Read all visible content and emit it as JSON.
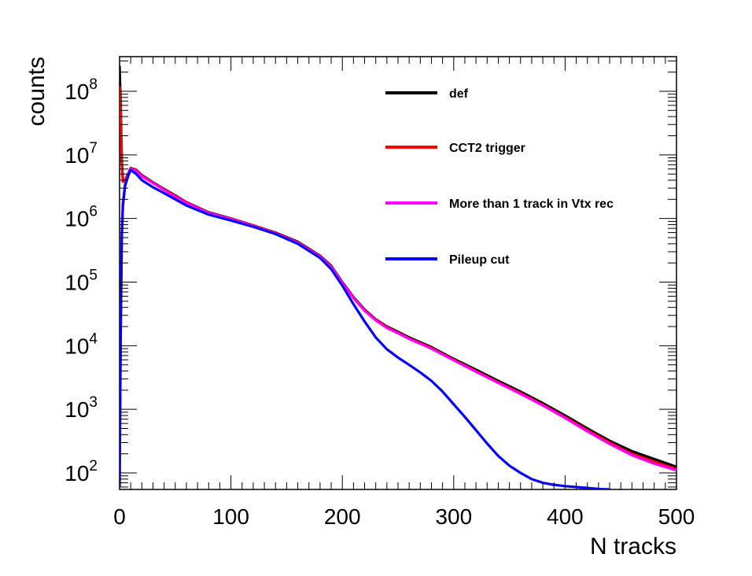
{
  "chart_data": {
    "type": "line",
    "title": "",
    "xlabel": "N tracks",
    "ylabel": "counts",
    "xlim": [
      0,
      500
    ],
    "ylim": [
      55,
      350000000
    ],
    "yscale": "log",
    "grid": false,
    "legend_position": "top-right",
    "x_ticks": [
      0,
      100,
      200,
      300,
      400,
      500
    ],
    "x_tick_labels": [
      "0",
      "100",
      "200",
      "300",
      "400",
      "500"
    ],
    "y_ticks": [
      100,
      1000,
      10000,
      100000,
      1000000,
      10000000,
      100000000
    ],
    "y_tick_labels": [
      {
        "base": "10",
        "exp": "2"
      },
      {
        "base": "10",
        "exp": "3"
      },
      {
        "base": "10",
        "exp": "4"
      },
      {
        "base": "10",
        "exp": "5"
      },
      {
        "base": "10",
        "exp": "6"
      },
      {
        "base": "10",
        "exp": "7"
      },
      {
        "base": "10",
        "exp": "8"
      }
    ],
    "series": [
      {
        "name": "def",
        "color": "#000000",
        "x": [
          0,
          1,
          2,
          3,
          5,
          8,
          10,
          15,
          20,
          30,
          40,
          50,
          60,
          80,
          100,
          120,
          140,
          160,
          180,
          190,
          200,
          210,
          220,
          230,
          240,
          250,
          260,
          280,
          300,
          320,
          340,
          360,
          380,
          400,
          420,
          440,
          460,
          480,
          500
        ],
        "y": [
          250000000,
          60000000,
          8000000,
          4000000,
          4000000,
          5200000,
          6200000,
          5800000,
          4800000,
          3700000,
          2900000,
          2300000,
          1800000,
          1250000,
          1000000,
          780000,
          600000,
          430000,
          260000,
          180000,
          100000,
          58000,
          37000,
          26000,
          20000,
          16500,
          13500,
          9500,
          6200,
          4200,
          2800,
          1900,
          1250,
          800,
          500,
          320,
          220,
          165,
          125
        ]
      },
      {
        "name": "CCT2 trigger",
        "color": "#ff0000",
        "x": [
          0,
          1,
          2,
          3,
          5,
          8,
          10,
          15,
          20,
          30,
          40,
          50,
          60,
          80,
          100,
          120,
          140,
          160,
          180,
          190,
          200,
          210,
          220,
          230,
          240,
          250,
          260,
          280,
          300,
          320,
          340,
          360,
          380,
          400,
          420,
          440,
          460,
          480,
          500
        ],
        "y": [
          120000000,
          40000000,
          7000000,
          3800000,
          3900000,
          5100000,
          6100000,
          5700000,
          4700000,
          3650000,
          2850000,
          2250000,
          1780000,
          1230000,
          990000,
          770000,
          590000,
          420000,
          255000,
          175000,
          98000,
          57000,
          36000,
          25500,
          19500,
          16000,
          13000,
          9200,
          6000,
          4000,
          2650,
          1800,
          1180,
          750,
          470,
          300,
          200,
          150,
          115
        ]
      },
      {
        "name": "More than 1 track in Vtx rec",
        "color": "#ff00ff",
        "x": [
          0,
          1,
          2,
          3,
          5,
          8,
          10,
          15,
          20,
          30,
          40,
          50,
          60,
          80,
          100,
          120,
          140,
          160,
          180,
          190,
          200,
          210,
          220,
          230,
          240,
          250,
          260,
          280,
          300,
          320,
          340,
          360,
          380,
          400,
          420,
          440,
          460,
          480,
          500
        ],
        "y": [
          60,
          20000,
          600000,
          1800000,
          3500000,
          5000000,
          6000000,
          5600000,
          4600000,
          3600000,
          2800000,
          2200000,
          1750000,
          1220000,
          980000,
          760000,
          585000,
          415000,
          252000,
          173000,
          97000,
          56000,
          35500,
          25000,
          19000,
          15700,
          12800,
          9000,
          5900,
          3900,
          2600,
          1750,
          1150,
          730,
          450,
          285,
          190,
          140,
          110
        ]
      },
      {
        "name": "Pileup cut",
        "color": "#0000ff",
        "x": [
          0,
          1,
          2,
          3,
          5,
          8,
          10,
          15,
          20,
          30,
          40,
          50,
          60,
          80,
          100,
          120,
          140,
          160,
          180,
          190,
          200,
          210,
          220,
          230,
          240,
          250,
          260,
          270,
          280,
          290,
          300,
          310,
          320,
          330,
          340,
          350,
          360,
          370,
          380,
          390,
          400,
          410,
          420,
          430,
          440
        ],
        "y": [
          60,
          15000,
          500000,
          1600000,
          3300000,
          4800000,
          5800000,
          5000000,
          4000000,
          3100000,
          2500000,
          2000000,
          1600000,
          1150000,
          930000,
          740000,
          570000,
          400000,
          240000,
          160000,
          88000,
          45000,
          24000,
          13500,
          8800,
          6500,
          5000,
          3800,
          2800,
          1900,
          1200,
          760,
          470,
          290,
          185,
          130,
          100,
          80,
          70,
          65,
          62,
          60,
          58,
          56,
          55
        ]
      }
    ]
  }
}
